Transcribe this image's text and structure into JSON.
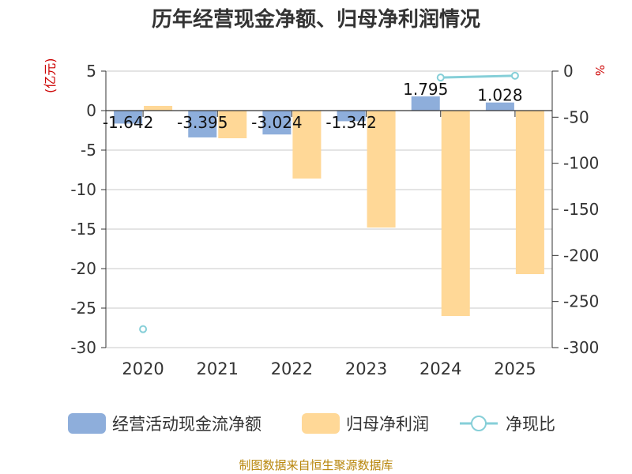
{
  "title": "历年经营现金净额、归母净利润情况",
  "units": {
    "left": "(亿元)",
    "right": "%"
  },
  "source": "制图数据来自恒生聚源数据库",
  "legend": [
    {
      "name": "经营活动现金流净额",
      "color": "#8eaedb"
    },
    {
      "name": "归母净利润",
      "color": "#ffd897"
    },
    {
      "name": "净现比",
      "color": "#86cfd8"
    }
  ],
  "chart_data": {
    "type": "bar",
    "categories": [
      "2020",
      "2021",
      "2022",
      "2023",
      "2024",
      "2025"
    ],
    "series": [
      {
        "name": "经营活动现金流净额",
        "axis": "left",
        "kind": "bar",
        "values": [
          -1.642,
          -3.395,
          -3.024,
          -1.342,
          1.795,
          1.028
        ],
        "labels": [
          "-1.642",
          "-3.395",
          "-3.024",
          "-1.342",
          "1.795",
          "1.028"
        ]
      },
      {
        "name": "归母净利润",
        "axis": "left",
        "kind": "bar",
        "values": [
          0.6,
          -3.5,
          -8.6,
          -14.8,
          -26.0,
          -20.7
        ]
      },
      {
        "name": "净现比",
        "axis": "right",
        "kind": "line",
        "values": [
          -280,
          null,
          null,
          null,
          -7,
          -5
        ]
      }
    ],
    "left_axis": {
      "min": -30,
      "max": 5,
      "ticks": [
        5,
        0,
        -5,
        -10,
        -15,
        -20,
        -25,
        -30
      ]
    },
    "right_axis": {
      "min": -300,
      "max": 0,
      "ticks": [
        0,
        -50,
        -100,
        -150,
        -200,
        -250,
        -300
      ]
    }
  }
}
